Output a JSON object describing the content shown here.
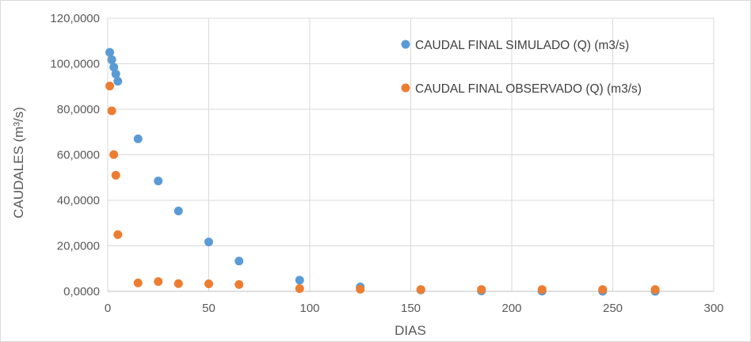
{
  "chart_data": {
    "type": "scatter",
    "xlabel": "DIAS",
    "ylabel": "CAUDALES  (m³/s)",
    "xlim": [
      0,
      300
    ],
    "ylim": [
      0,
      120
    ],
    "x_ticks": [
      0,
      50,
      100,
      150,
      200,
      250,
      300
    ],
    "x_tick_labels": [
      "0",
      "50",
      "100",
      "150",
      "200",
      "250",
      "300"
    ],
    "y_ticks": [
      0,
      20,
      40,
      60,
      80,
      100,
      120
    ],
    "y_tick_labels": [
      "0,0000",
      "20,0000",
      "40,0000",
      "60,0000",
      "80,0000",
      "100,0000",
      "120,0000"
    ],
    "grid": true,
    "legend_position": "top-right",
    "series": [
      {
        "name": "CAUDAL FINAL SIMULADO (Q) (m3/s)",
        "color": "#5b9bd5",
        "x": [
          1,
          2,
          3,
          4,
          5,
          15,
          25,
          35,
          50,
          65,
          95,
          125,
          155,
          185,
          215,
          245,
          271
        ],
        "y": [
          105.0,
          101.8,
          98.5,
          95.5,
          92.3,
          67.0,
          48.5,
          35.3,
          21.7,
          13.3,
          4.9,
          1.9,
          0.6,
          0.2,
          0.1,
          0.05,
          0.02
        ]
      },
      {
        "name": "CAUDAL FINAL OBSERVADO (Q) (m3/s)",
        "color": "#ed7d31",
        "x": [
          1,
          2,
          3,
          4,
          5,
          15,
          25,
          35,
          50,
          65,
          95,
          125,
          155,
          185,
          215,
          245,
          271
        ],
        "y": [
          90.2,
          79.3,
          60.1,
          51.0,
          24.9,
          3.7,
          4.3,
          3.4,
          3.3,
          3.0,
          1.2,
          0.9,
          0.8,
          0.8,
          0.8,
          0.8,
          0.8
        ]
      }
    ]
  }
}
